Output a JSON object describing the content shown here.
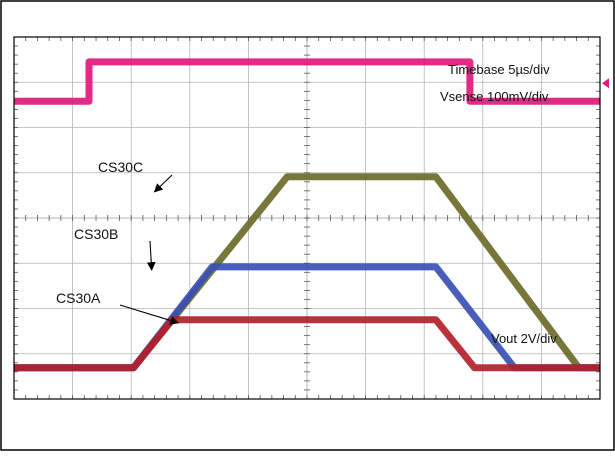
{
  "chart_data": {
    "type": "line",
    "grid": true,
    "divisions": {
      "x": 10,
      "y": 8
    },
    "xlim": [
      0,
      10
    ],
    "ylim": [
      0,
      8
    ],
    "colors": {
      "grid": "#b5b5b5",
      "frame": "#000000",
      "trigger_marker": "#e0197d",
      "ch_marker": "#e0197d"
    },
    "annotations": {
      "timebase": "Timebase 5µs/div",
      "vsense": "Vsense 100mV/div",
      "vout": "Vout 2V/div"
    },
    "series": [
      {
        "name": "Vsense",
        "color": "#e0197d",
        "x": [
          0,
          1.28,
          1.28,
          7.78,
          7.78,
          10
        ],
        "y": [
          6.58,
          6.58,
          7.45,
          7.45,
          6.58,
          6.58
        ]
      },
      {
        "name": "CS30C",
        "color": "#6b6b2a",
        "x": [
          0,
          2.04,
          4.66,
          7.2,
          9.64,
          10
        ],
        "y": [
          0.69,
          0.69,
          4.91,
          4.91,
          0.69,
          0.69
        ]
      },
      {
        "name": "CS30B",
        "color": "#3a4fb5",
        "x": [
          0,
          2.04,
          3.38,
          7.2,
          8.54,
          10
        ],
        "y": [
          0.69,
          0.69,
          2.92,
          2.92,
          0.69,
          0.69
        ]
      },
      {
        "name": "CS30A",
        "color": "#b3202a",
        "x": [
          0,
          2.04,
          2.7,
          7.2,
          7.86,
          10
        ],
        "y": [
          0.69,
          0.69,
          1.75,
          1.75,
          0.69,
          0.69
        ]
      }
    ],
    "labels": [
      {
        "text": "CS30C",
        "series": "CS30C"
      },
      {
        "text": "CS30B",
        "series": "CS30B"
      },
      {
        "text": "CS30A",
        "series": "CS30A"
      }
    ]
  }
}
